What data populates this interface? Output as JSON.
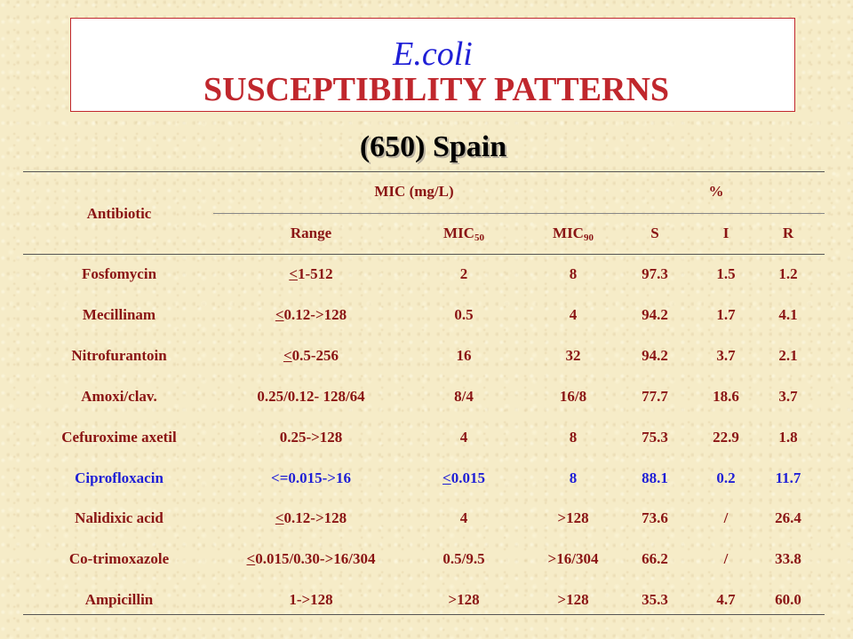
{
  "title": {
    "organism": "E.coli",
    "heading": "SUSCEPTIBILITY PATTERNS"
  },
  "subtitle": "(650) Spain",
  "table": {
    "headers": {
      "antibiotic": "Antibiotic",
      "mic_group": "MIC (mg/L)",
      "pct_group": "%",
      "range": "Range",
      "mic50": "MIC",
      "mic50_sub": "50",
      "mic90": "MIC",
      "mic90_sub": "90",
      "s": "S",
      "i": "I",
      "r": "R"
    },
    "rows": [
      {
        "antibiotic": "Fosfomycin",
        "range": "<1-512",
        "range_underline_first": true,
        "mic50": "2",
        "mic50_underline_first": false,
        "mic90": "8",
        "s": "97.3",
        "i": "1.5",
        "r": "1.2",
        "highlight": false
      },
      {
        "antibiotic": "Mecillinam",
        "range": "<0.12->128",
        "range_underline_first": true,
        "mic50": "0.5",
        "mic50_underline_first": false,
        "mic90": "4",
        "s": "94.2",
        "i": "1.7",
        "r": "4.1",
        "highlight": false
      },
      {
        "antibiotic": "Nitrofurantoin",
        "range": "<0.5-256",
        "range_underline_first": true,
        "mic50": "16",
        "mic50_underline_first": false,
        "mic90": "32",
        "s": "94.2",
        "i": "3.7",
        "r": "2.1",
        "highlight": false
      },
      {
        "antibiotic": "Amoxi/clav.",
        "range": "0.25/0.12- 128/64",
        "range_underline_first": false,
        "mic50": "8/4",
        "mic50_underline_first": false,
        "mic90": "16/8",
        "s": "77.7",
        "i": "18.6",
        "r": "3.7",
        "highlight": false
      },
      {
        "antibiotic": "Cefuroxime axetil",
        "range": "0.25->128",
        "range_underline_first": false,
        "mic50": "4",
        "mic50_underline_first": false,
        "mic90": "8",
        "s": "75.3",
        "i": "22.9",
        "r": "1.8",
        "highlight": false
      },
      {
        "antibiotic": "Ciprofloxacin",
        "range": "<=0.015->16",
        "range_underline_first": false,
        "mic50": "<0.015",
        "mic50_underline_first": true,
        "mic90": "8",
        "s": "88.1",
        "i": "0.2",
        "r": "11.7",
        "highlight": true
      },
      {
        "antibiotic": "Nalidixic acid",
        "range": "<0.12->128",
        "range_underline_first": true,
        "mic50": "4",
        "mic50_underline_first": false,
        "mic90": ">128",
        "s": "73.6",
        "i": "/",
        "r": "26.4",
        "highlight": false
      },
      {
        "antibiotic": "Co-trimoxazole",
        "range": "<0.015/0.30->16/304",
        "range_underline_first": true,
        "mic50": "0.5/9.5",
        "mic50_underline_first": false,
        "mic90": ">16/304",
        "s": "66.2",
        "i": "/",
        "r": "33.8",
        "highlight": false
      },
      {
        "antibiotic": "Ampicillin",
        "range": "1->128",
        "range_underline_first": false,
        "mic50": ">128",
        "mic50_underline_first": false,
        "mic90": ">128",
        "s": "35.3",
        "i": "4.7",
        "r": "60.0",
        "highlight": false
      }
    ]
  },
  "colors": {
    "title_organism": "#1f1fd6",
    "title_heading": "#c0272d",
    "table_text": "#8a1414",
    "highlight_text": "#1f1fd6"
  }
}
